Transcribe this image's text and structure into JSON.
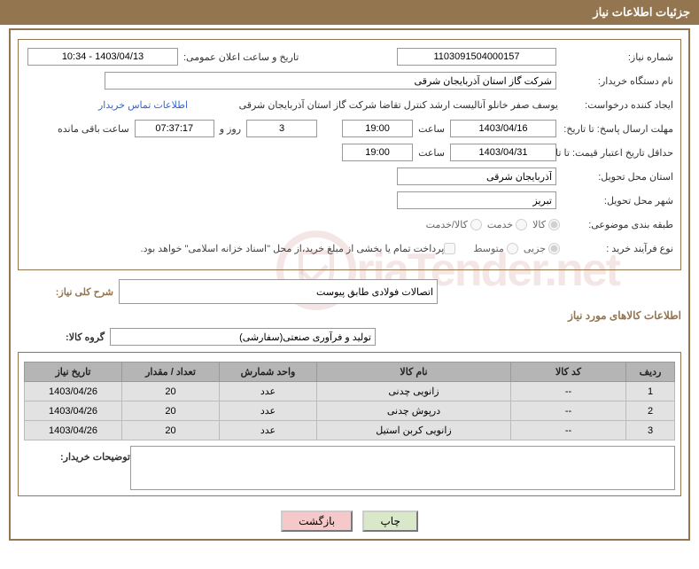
{
  "header": {
    "title": "جزئیات اطلاعات نیاز"
  },
  "form": {
    "need_number_label": "شماره نیاز:",
    "need_number": "1103091504000157",
    "announce_label": "تاریخ و ساعت اعلان عمومی:",
    "announce_value": "1403/04/13 - 10:34",
    "buyer_org_label": "نام دستگاه خریدار:",
    "buyer_org": "شرکت گاز استان آذربایجان شرقی",
    "requester_label": "ایجاد کننده درخواست:",
    "requester": "یوسف صفر خانلو  آنالیست ارشد کنترل تقاضا  شرکت گاز استان آذربایجان شرقی",
    "contact_link": "اطلاعات تماس خریدار",
    "response_deadline_label": "مهلت ارسال پاسخ: تا تاریخ:",
    "response_deadline_date": "1403/04/16",
    "time_label": "ساعت",
    "response_deadline_time": "19:00",
    "remaining_days": "3",
    "remaining_days_label": "روز و",
    "remaining_time": "07:37:17",
    "remaining_suffix": "ساعت باقی مانده",
    "price_validity_label": "حداقل تاریخ اعتبار قیمت: تا تاریخ:",
    "price_validity_date": "1403/04/31",
    "price_validity_time": "19:00",
    "delivery_province_label": "استان محل تحویل:",
    "delivery_province": "آذربایجان شرقی",
    "delivery_city_label": "شهر محل تحویل:",
    "delivery_city": "تبریز",
    "subject_class_label": "طبقه بندی موضوعی:",
    "radio_goods": "کالا",
    "radio_service": "خدمت",
    "radio_goods_service": "کالا/خدمت",
    "purchase_type_label": "نوع فرآیند خرید :",
    "radio_small": "جزیی",
    "radio_medium": "متوسط",
    "payment_note": "پرداخت تمام یا بخشی از مبلغ خرید،از محل \"اسناد خزانه اسلامی\" خواهد بود.",
    "need_desc_label": "شرح کلی نیاز:",
    "need_desc": "اتصالات فولادی طابق پیوست",
    "items_section_title": "اطلاعات کالاهای مورد نیاز",
    "goods_group_label": "گروه کالا:",
    "goods_group": "تولید و فرآوری صنعتی(سفارشی)"
  },
  "table": {
    "columns": [
      "ردیف",
      "کد کالا",
      "نام کالا",
      "واحد شمارش",
      "تعداد / مقدار",
      "تاریخ نیاز"
    ],
    "col_widths": [
      "55px",
      "130px",
      "auto",
      "110px",
      "110px",
      "110px"
    ],
    "rows": [
      [
        "1",
        "--",
        "زانویی چدنی",
        "عدد",
        "20",
        "1403/04/26"
      ],
      [
        "2",
        "--",
        "درپوش چدنی",
        "عدد",
        "20",
        "1403/04/26"
      ],
      [
        "3",
        "--",
        "زانویی کربن استیل",
        "عدد",
        "20",
        "1403/04/26"
      ]
    ]
  },
  "notes": {
    "label": "توضیحات خریدار:",
    "value": ""
  },
  "buttons": {
    "print": "چاپ",
    "back": "بازگشت"
  },
  "watermark": "riaTender.net",
  "colors": {
    "brand": "#93754f",
    "th_bg": "#b5b5b5",
    "td_bg": "#e2e2e2",
    "link": "#3366cc"
  }
}
